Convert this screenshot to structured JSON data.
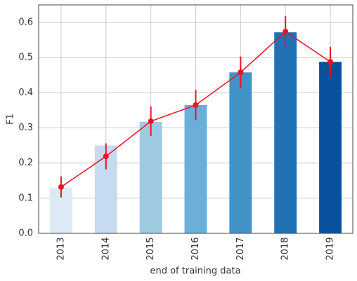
{
  "chart_data": {
    "type": "bar",
    "xlabel": "end of training data",
    "ylabel": "F1",
    "categories": [
      "2013",
      "2014",
      "2015",
      "2016",
      "2017",
      "2018",
      "2019"
    ],
    "series": [
      {
        "type": "bar",
        "colors": [
          "#dde9f5",
          "#c6dbef",
          "#9ecae1",
          "#6baed6",
          "#4292c6",
          "#2171b5",
          "#08519c"
        ],
        "values": [
          0.13,
          0.25,
          0.317,
          0.365,
          0.458,
          0.572,
          0.488
        ]
      },
      {
        "type": "line",
        "color": "#ee1122",
        "values": [
          0.132,
          0.219,
          0.319,
          0.365,
          0.458,
          0.574,
          0.488
        ],
        "errors": [
          0.03,
          0.037,
          0.042,
          0.043,
          0.045,
          0.044,
          0.043
        ]
      }
    ],
    "ylim": [
      0,
      0.65
    ],
    "yticks": [
      {
        "value": 0,
        "label": "0.0"
      },
      0.1,
      0.2,
      0.3,
      0.4,
      0.5,
      0.6
    ],
    "grid": true
  }
}
